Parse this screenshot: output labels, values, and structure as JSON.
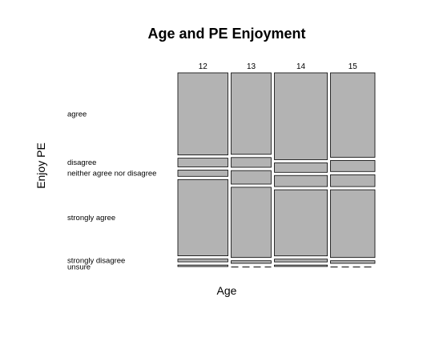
{
  "chart_data": {
    "type": "mosaic",
    "title": "Age and PE Enjoyment",
    "xlabel": "Age",
    "ylabel": "Enjoy PE",
    "x_categories": [
      "12",
      "13",
      "14",
      "15"
    ],
    "x_proportions": [
      0.248,
      0.198,
      0.262,
      0.22
    ],
    "y_categories": [
      "agree",
      "disagree",
      "neither agree nor disagree",
      "strongly agree",
      "strongly disagree",
      "unsure"
    ],
    "cell_proportions": [
      [
        0.434,
        0.046,
        0.033,
        0.403,
        0.015,
        0.008
      ],
      [
        0.434,
        0.052,
        0.072,
        0.374,
        0.014,
        0.0
      ],
      [
        0.469,
        0.051,
        0.06,
        0.357,
        0.015,
        0.008
      ],
      [
        0.45,
        0.059,
        0.063,
        0.361,
        0.014,
        0.0
      ]
    ],
    "fill_color": "#b3b3b3",
    "stroke_color": "#000000",
    "zero_line_color": "#444444"
  }
}
